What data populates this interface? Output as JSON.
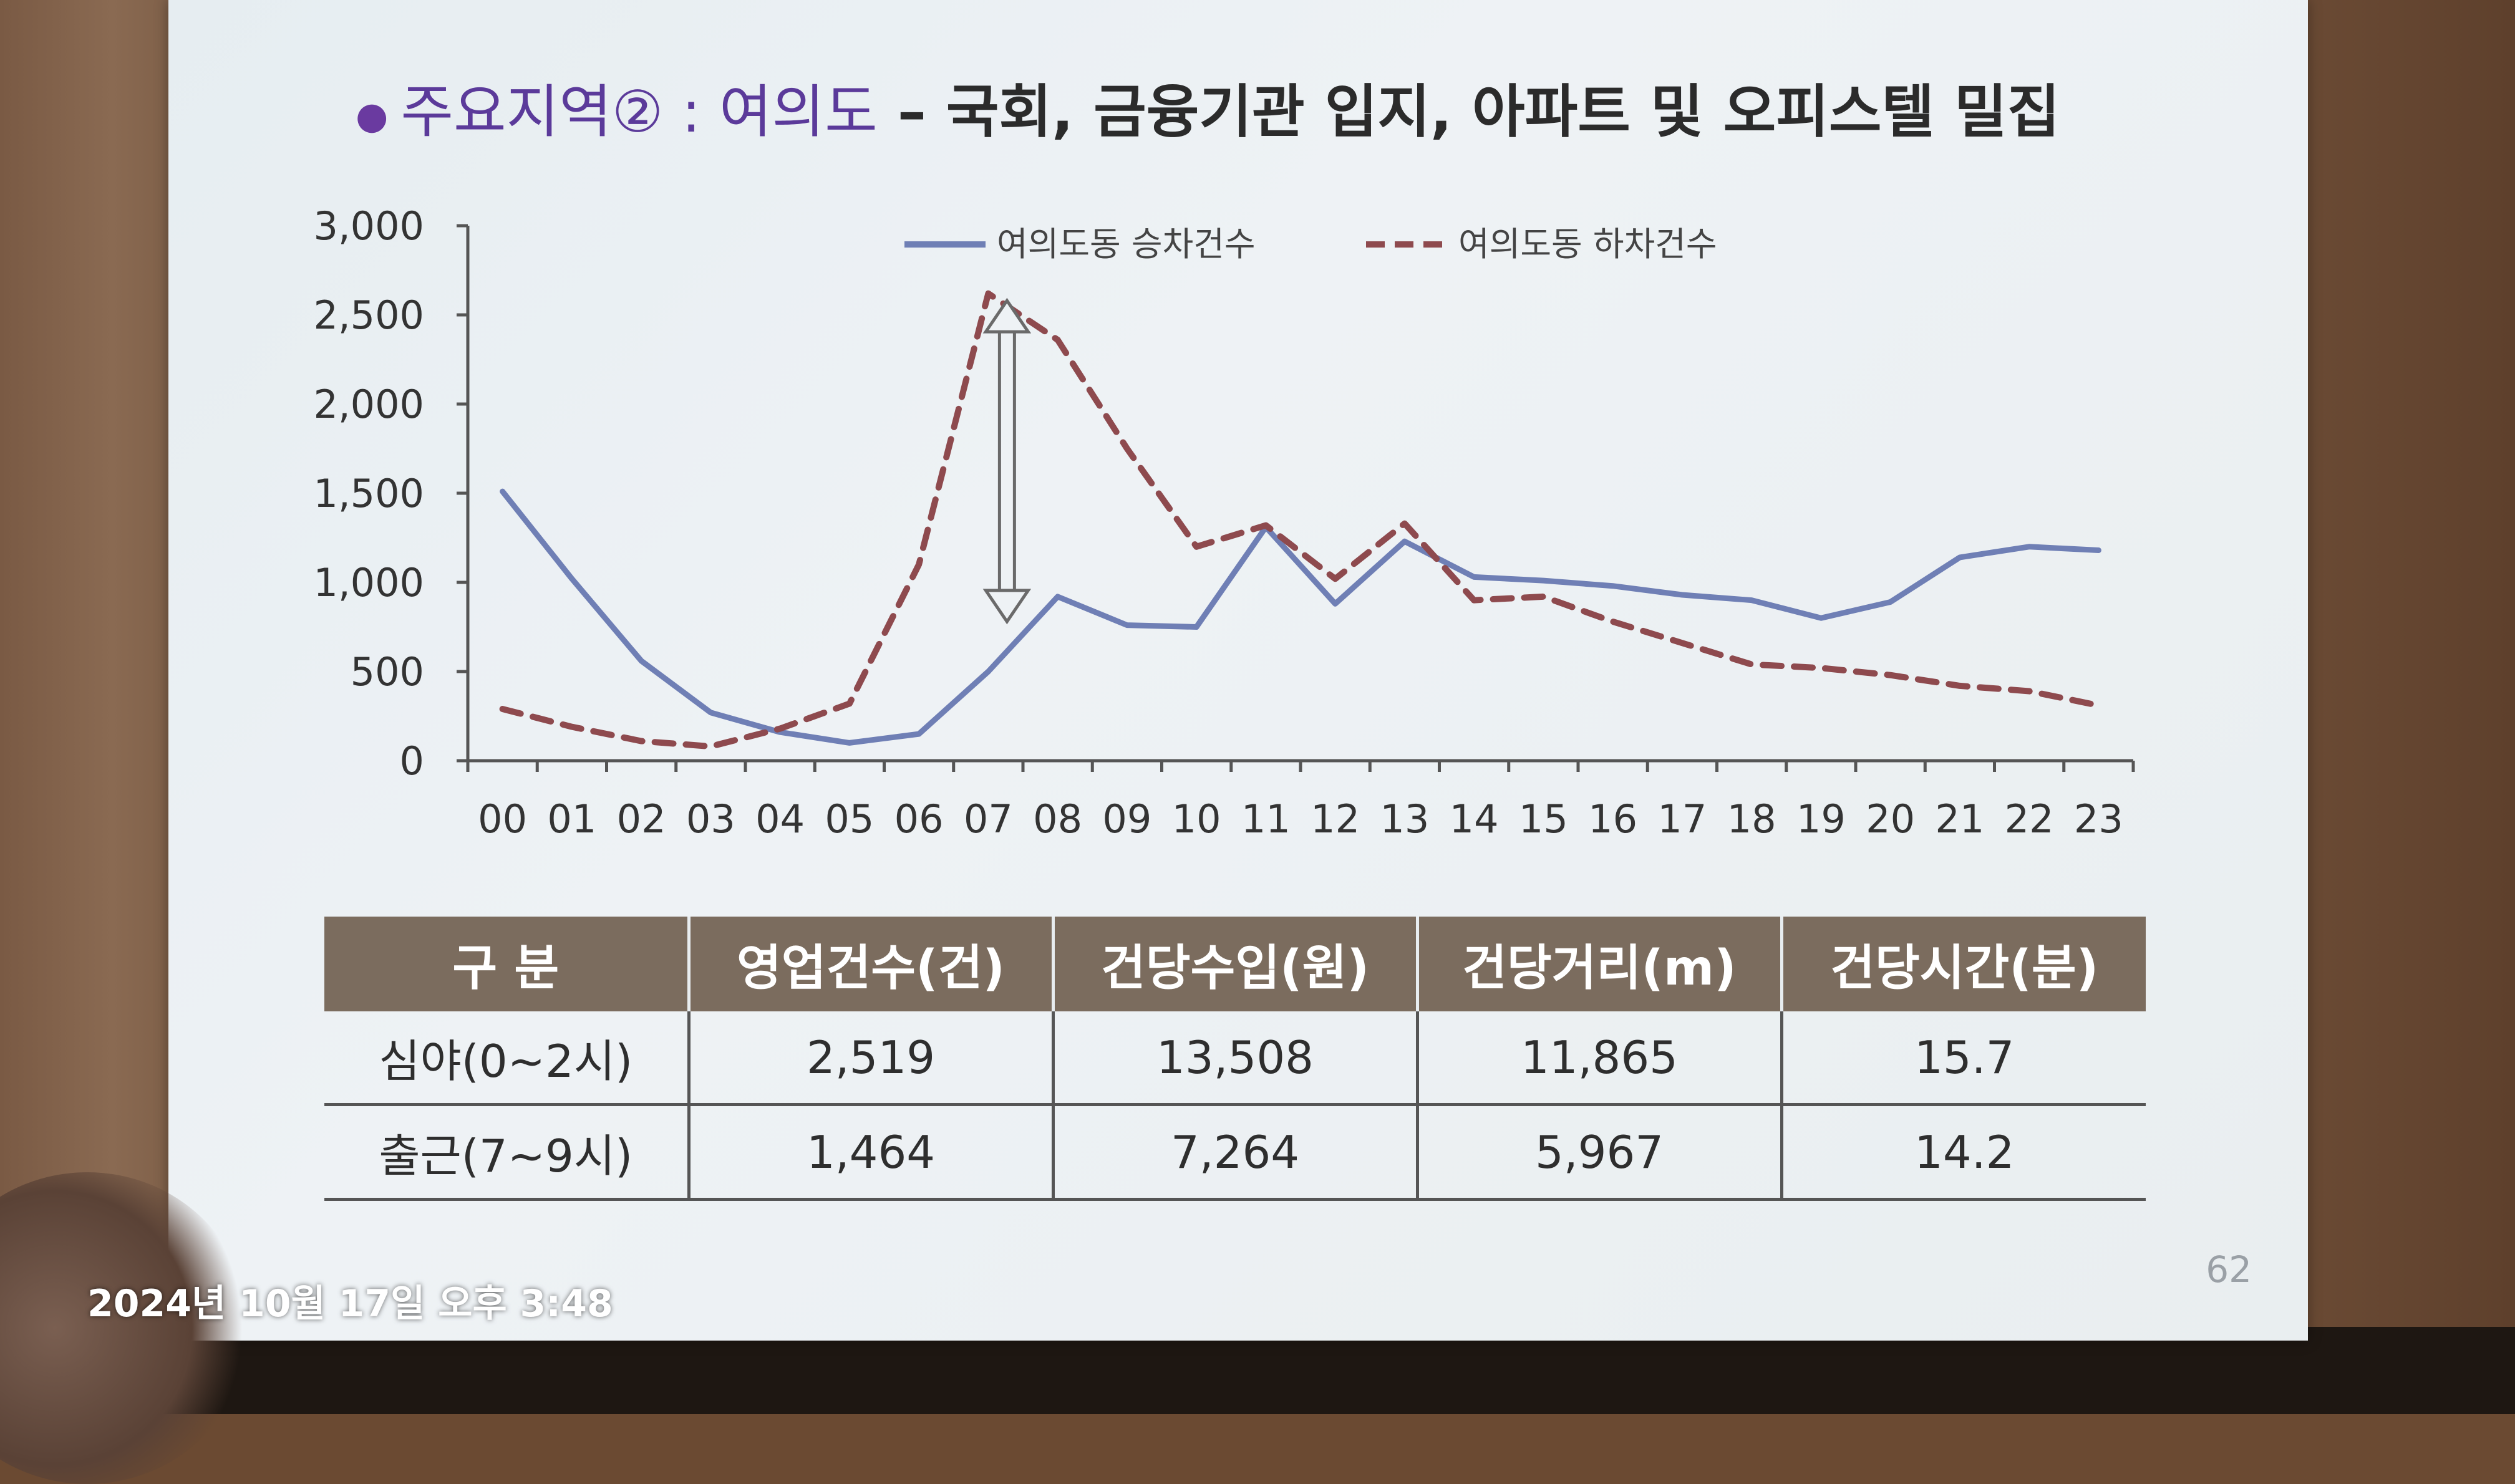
{
  "slide": {
    "title_prefix": "주요지역② : 여의도",
    "title_rest": " – 국회, 금융기관 입지, 아파트 및 오피스텔 밀집",
    "page_number": "62"
  },
  "chart_data": {
    "type": "line",
    "categories": [
      "00",
      "01",
      "02",
      "03",
      "04",
      "05",
      "06",
      "07",
      "08",
      "09",
      "10",
      "11",
      "12",
      "13",
      "14",
      "15",
      "16",
      "17",
      "18",
      "19",
      "20",
      "21",
      "22",
      "23"
    ],
    "ylim": [
      0,
      3000
    ],
    "yticks": [
      0,
      500,
      1000,
      1500,
      2000,
      2500,
      3000
    ],
    "ytick_labels": [
      "0",
      "500",
      "1,000",
      "1,500",
      "2,000",
      "2,500",
      "3,000"
    ],
    "legend_position": "top-center",
    "series": [
      {
        "name": "여의도동 승차건수",
        "style": "solid",
        "color": "#6f7fb5",
        "values": [
          1510,
          1020,
          560,
          270,
          160,
          100,
          150,
          500,
          920,
          760,
          750,
          1310,
          880,
          1230,
          1030,
          1010,
          980,
          930,
          900,
          800,
          890,
          1140,
          1200,
          1180
        ]
      },
      {
        "name": "여의도동 하차건수",
        "style": "dashed",
        "color": "#8e4a4e",
        "values": [
          290,
          190,
          110,
          80,
          180,
          320,
          1100,
          2620,
          2360,
          1750,
          1200,
          1320,
          1020,
          1330,
          900,
          920,
          780,
          660,
          540,
          520,
          480,
          420,
          390,
          310
        ]
      }
    ],
    "annotation": {
      "type": "double-arrow",
      "category": "07",
      "from": 2580,
      "to": 780
    }
  },
  "table": {
    "headers": [
      "구  분",
      "영업건수(건)",
      "건당수입(원)",
      "건당거리(m)",
      "건당시간(분)"
    ],
    "rows": [
      [
        "심야(0~2시)",
        "2,519",
        "13,508",
        "11,865",
        "15.7"
      ],
      [
        "출근(7~9시)",
        "1,464",
        "7,264",
        "5,967",
        "14.2"
      ]
    ]
  },
  "overlay": {
    "timestamp": "2024년 10월 17일 오후 3:48"
  }
}
